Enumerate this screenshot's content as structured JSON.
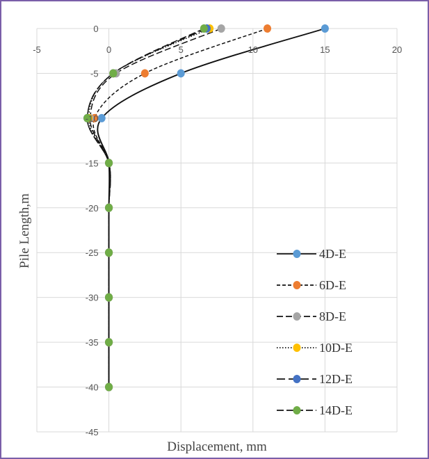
{
  "chart_data": {
    "type": "line",
    "title": "",
    "xlabel": "Displacement, mm",
    "ylabel": "Pile Length,m",
    "xlim": [
      -5,
      20
    ],
    "ylim": [
      -45,
      0
    ],
    "x_ticks": [
      "-5",
      "0",
      "5",
      "10",
      "15",
      "20"
    ],
    "y_ticks": [
      "0",
      "-5",
      "-10",
      "-15",
      "-20",
      "-25",
      "-30",
      "-35",
      "-40",
      "-45"
    ],
    "grid": true,
    "legend_position": "bottom-right",
    "series": [
      {
        "name": "4D-E",
        "color": "#5b9bd5",
        "dash": "solid",
        "x": [
          15,
          5,
          -0.5,
          0,
          0,
          0,
          0,
          0,
          0
        ],
        "y": [
          0,
          -5,
          -10,
          -15,
          -20,
          -25,
          -30,
          -35,
          -40
        ]
      },
      {
        "name": "6D-E",
        "color": "#ed7d31",
        "dash": "short",
        "x": [
          11,
          2.5,
          -1,
          0,
          0,
          0,
          0,
          0,
          0
        ],
        "y": [
          0,
          -5,
          -10,
          -15,
          -20,
          -25,
          -30,
          -35,
          -40
        ]
      },
      {
        "name": "8D-E",
        "color": "#a5a5a5",
        "dash": "long",
        "x": [
          7.8,
          0.5,
          -1.3,
          0,
          0,
          0,
          0,
          0,
          0
        ],
        "y": [
          0,
          -5,
          -10,
          -15,
          -20,
          -25,
          -30,
          -35,
          -40
        ]
      },
      {
        "name": "10D-E",
        "color": "#ffc000",
        "dash": "dot",
        "x": [
          7,
          0.3,
          -1.4,
          0,
          0,
          0,
          0,
          0,
          0
        ],
        "y": [
          0,
          -5,
          -10,
          -15,
          -20,
          -25,
          -30,
          -35,
          -40
        ]
      },
      {
        "name": "12D-E",
        "color": "#4472c4",
        "dash": "longlong",
        "x": [
          6.8,
          0.3,
          -1.5,
          0,
          0,
          0,
          0,
          0,
          0
        ],
        "y": [
          0,
          -5,
          -10,
          -15,
          -20,
          -25,
          -30,
          -35,
          -40
        ]
      },
      {
        "name": "14D-E",
        "color": "#70ad47",
        "dash": "longdash",
        "x": [
          6.6,
          0.3,
          -1.5,
          0,
          0,
          0,
          0,
          0,
          0
        ],
        "y": [
          0,
          -5,
          -10,
          -15,
          -20,
          -25,
          -30,
          -35,
          -40
        ]
      }
    ]
  }
}
